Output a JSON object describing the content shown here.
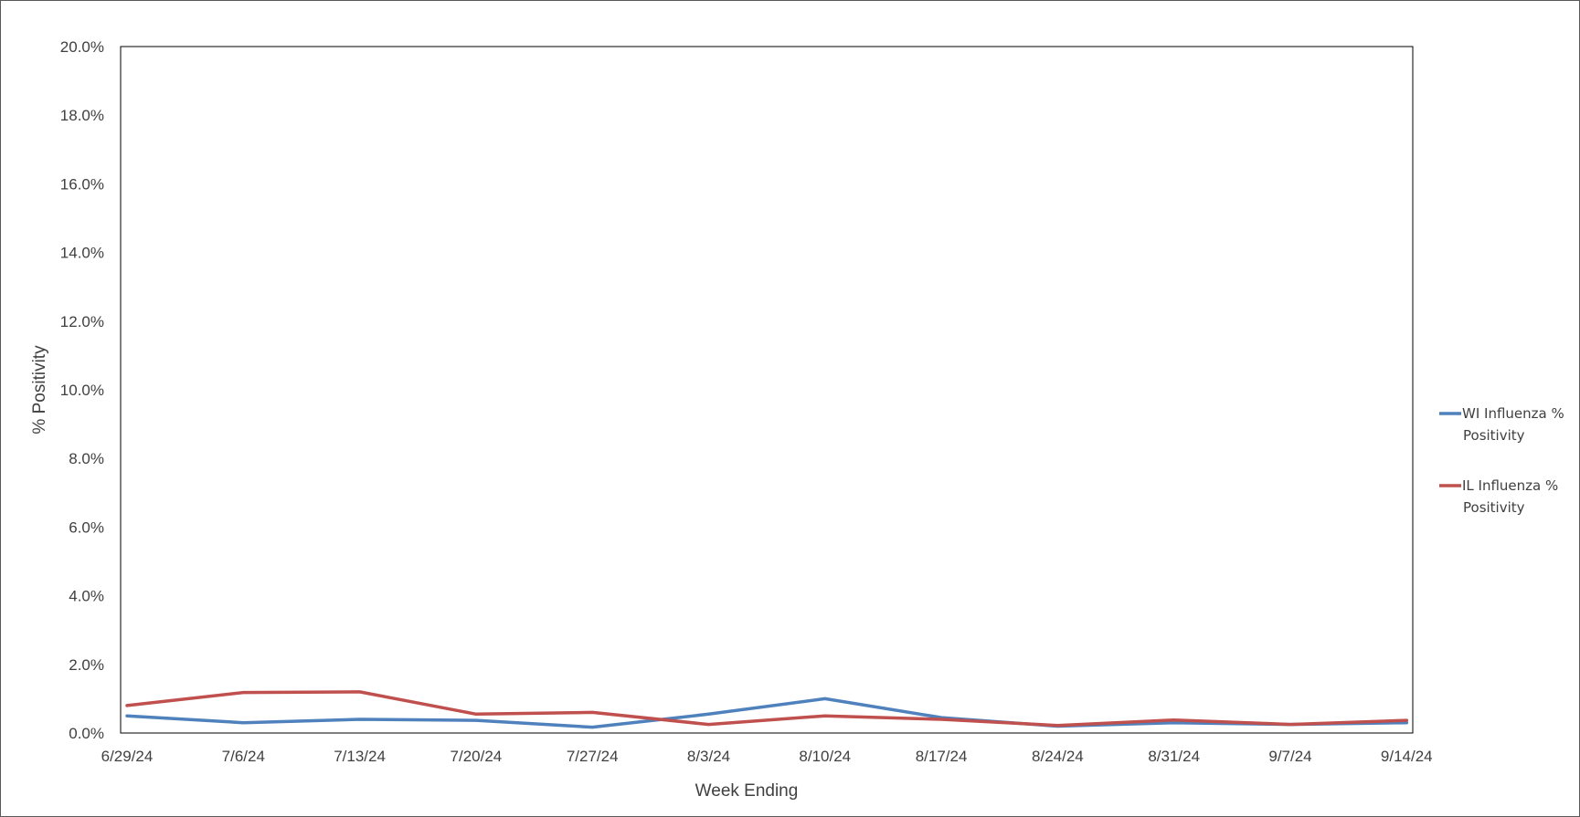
{
  "chart_data": {
    "type": "line",
    "title": "",
    "xlabel": "Week Ending",
    "ylabel": "% Positivity",
    "categories": [
      "6/29/24",
      "7/6/24",
      "7/13/24",
      "7/20/24",
      "7/27/24",
      "8/3/24",
      "8/10/24",
      "8/17/24",
      "8/24/24",
      "8/31/24",
      "9/7/24",
      "9/14/24"
    ],
    "y_ticks": [
      "0.0%",
      "2.0%",
      "4.0%",
      "6.0%",
      "8.0%",
      "10.0%",
      "12.0%",
      "14.0%",
      "16.0%",
      "18.0%",
      "20.0%"
    ],
    "ylim": [
      0,
      20
    ],
    "grid": false,
    "legend_position": "right",
    "series": [
      {
        "name_lines": [
          "WI Influenza %",
          "Positivity"
        ],
        "color": "#4F81BD",
        "values": [
          0.5,
          0.3,
          0.4,
          0.37,
          0.17,
          0.55,
          1.0,
          0.45,
          0.2,
          0.3,
          0.25,
          0.3
        ]
      },
      {
        "name_lines": [
          "IL Influenza %",
          "Positivity"
        ],
        "color": "#C0504D",
        "values": [
          0.8,
          1.18,
          1.2,
          0.55,
          0.6,
          0.25,
          0.5,
          0.4,
          0.22,
          0.38,
          0.25,
          0.37
        ]
      }
    ]
  }
}
